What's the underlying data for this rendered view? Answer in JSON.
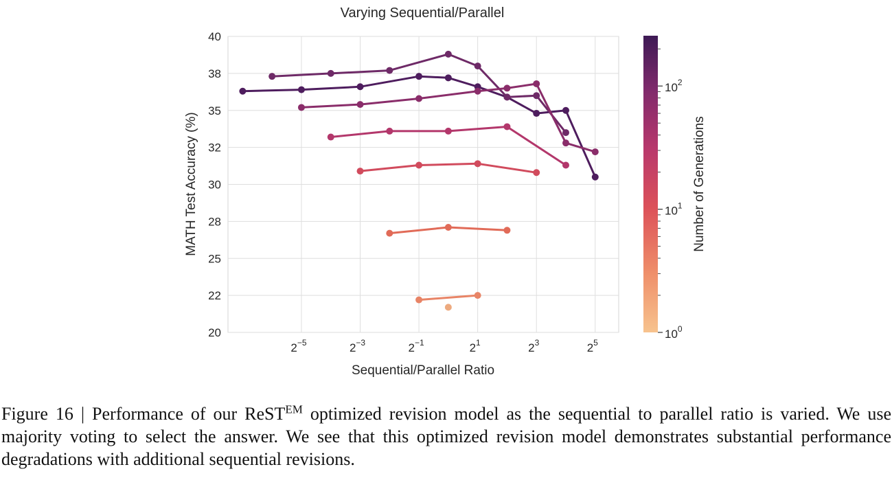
{
  "chart_data": {
    "type": "line",
    "title": "Varying Sequential/Parallel",
    "xlabel": "Sequential/Parallel Ratio",
    "ylabel": "MATH Test Accuracy (%)",
    "x_scale": "log2",
    "xlim_log2": [
      -7.5,
      5.8
    ],
    "ylim": [
      20,
      40
    ],
    "x_ticks": [
      {
        "base": "2",
        "exp": "−5",
        "value_log2": -5
      },
      {
        "base": "2",
        "exp": "−3",
        "value_log2": -3
      },
      {
        "base": "2",
        "exp": "−1",
        "value_log2": -1
      },
      {
        "base": "2",
        "exp": "1",
        "value_log2": 1
      },
      {
        "base": "2",
        "exp": "3",
        "value_log2": 3
      },
      {
        "base": "2",
        "exp": "5",
        "value_log2": 5
      }
    ],
    "y_ticks": [
      {
        "label": "20",
        "value": 20
      },
      {
        "label": "22",
        "value": 22.5
      },
      {
        "label": "25",
        "value": 25
      },
      {
        "label": "28",
        "value": 27.5
      },
      {
        "label": "30",
        "value": 30
      },
      {
        "label": "32",
        "value": 32.5
      },
      {
        "label": "35",
        "value": 35
      },
      {
        "label": "38",
        "value": 37.5
      },
      {
        "label": "40",
        "value": 40
      }
    ],
    "grid": true,
    "colorbar": {
      "label": "Number of Generations",
      "scale": "log",
      "range": [
        1,
        256
      ],
      "ticks": [
        {
          "base": "10",
          "exp": "0",
          "value": 1
        },
        {
          "base": "10",
          "exp": "1",
          "value": 10
        },
        {
          "base": "10",
          "exp": "2",
          "value": 100
        }
      ]
    },
    "series": [
      {
        "generations": 256,
        "color": "#4e1d5e",
        "x_log2": [
          -7,
          -5,
          -3,
          -1,
          0,
          1,
          2,
          3,
          4,
          5
        ],
        "y": [
          36.3,
          36.4,
          36.6,
          37.3,
          37.2,
          36.6,
          35.9,
          34.8,
          35,
          30.5
        ]
      },
      {
        "generations": 128,
        "color": "#6e2a67",
        "x_log2": [
          -6,
          -4,
          -2,
          0,
          1,
          2,
          3,
          4
        ],
        "y": [
          37.3,
          37.5,
          37.7,
          38.8,
          38,
          35.9,
          36.0,
          33.5
        ]
      },
      {
        "generations": 64,
        "color": "#8a2d6a",
        "x_log2": [
          -5,
          -3,
          -1,
          1,
          2,
          3,
          4,
          5
        ],
        "y": [
          35.2,
          35.4,
          35.8,
          36.3,
          36.5,
          36.8,
          32.8,
          32.2
        ]
      },
      {
        "generations": 32,
        "color": "#b3376b",
        "x_log2": [
          -4,
          -2,
          0,
          2,
          4
        ],
        "y": [
          33.2,
          33.6,
          33.6,
          33.9,
          31.3
        ]
      },
      {
        "generations": 16,
        "color": "#d14b5d",
        "x_log2": [
          -3,
          -1,
          1,
          3
        ],
        "y": [
          30.9,
          31.3,
          31.4,
          30.8
        ]
      },
      {
        "generations": 8,
        "color": "#e16b58",
        "x_log2": [
          -2,
          0,
          2
        ],
        "y": [
          26.7,
          27.1,
          26.9
        ]
      },
      {
        "generations": 4,
        "color": "#e88466",
        "x_log2": [
          -1,
          1
        ],
        "y": [
          22.2,
          22.5
        ]
      },
      {
        "generations": 1,
        "color": "#edaa7f",
        "x_log2": [
          0
        ],
        "y": [
          21.7
        ]
      }
    ]
  },
  "caption": {
    "prefix": "Figure 16 | Performance of our ReST",
    "superscript": "EM",
    "text": " optimized revision model as the sequential to parallel ratio is varied.  We use majority voting to select the answer.  We see that this optimized revision model demonstrates substantial performance degradations with additional sequential revisions."
  }
}
